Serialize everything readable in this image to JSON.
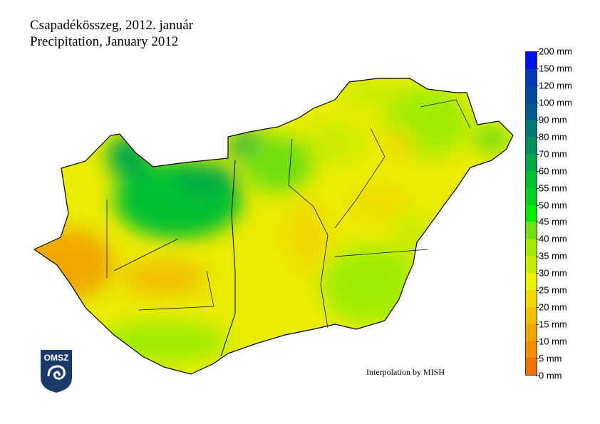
{
  "title_hu": "Csapadékösszeg, 2012. január",
  "title_en": "Precipitation, January 2012",
  "credit": "Interpolation by MISH",
  "logo_text": "OMSZ",
  "legend": {
    "unit": "mm",
    "labels": [
      "0 mm",
      "5 mm",
      "10 mm",
      "15 mm",
      "20 mm",
      "25 mm",
      "30 mm",
      "35 mm",
      "40 mm",
      "45 mm",
      "50 mm",
      "55 mm",
      "60 mm",
      "70 mm",
      "80 mm",
      "90 mm",
      "100 mm",
      "120 mm",
      "150 mm",
      "200 mm"
    ],
    "colors": [
      "#ee7000",
      "#f09000",
      "#f0a800",
      "#f0c000",
      "#f0d800",
      "#f0f000",
      "#c8ec00",
      "#a0ec00",
      "#70e010",
      "#00ec00",
      "#00d020",
      "#00c030",
      "#00a848",
      "#009060",
      "#007878",
      "#005890",
      "#0048a0",
      "#0038b8",
      "#0010e8"
    ]
  }
}
